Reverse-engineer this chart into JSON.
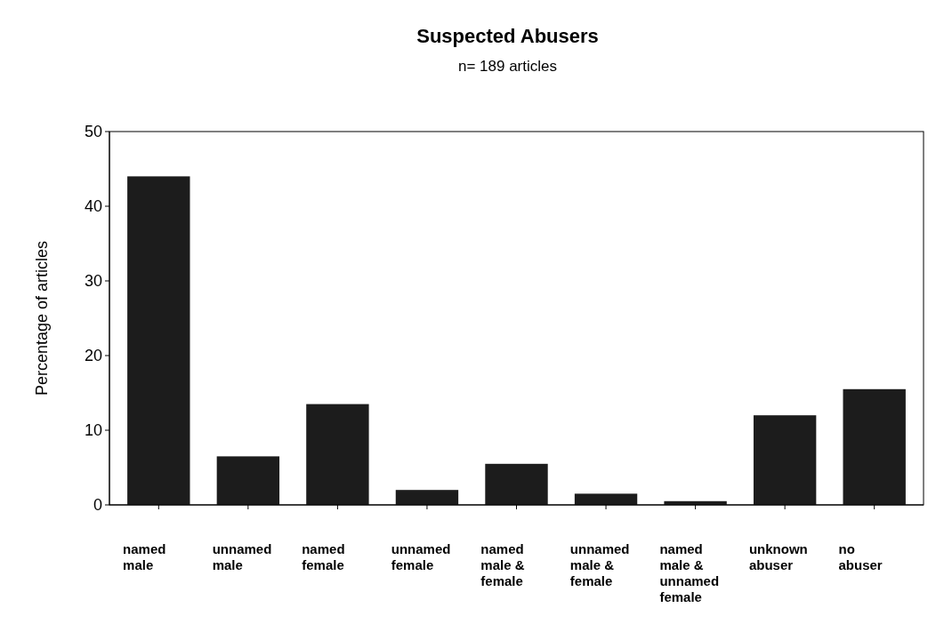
{
  "chart_data": {
    "type": "bar",
    "title": "Suspected Abusers",
    "subtitle": "n= 189 articles",
    "ylabel": "Percentage of articles",
    "categories": [
      "named male",
      "unnamed male",
      "named female",
      "unnamed female",
      "named male & female",
      "unnamed male & female",
      "named male & unnamed female",
      "unknown abuser",
      "no abuser"
    ],
    "values": [
      44,
      6.5,
      13.5,
      2,
      5.5,
      1.5,
      0.5,
      12,
      15.5
    ],
    "color": "#1c1c1c",
    "ylim": [
      0,
      50
    ],
    "yticks": [
      0,
      10,
      20,
      30,
      40,
      50
    ],
    "grid": false
  }
}
